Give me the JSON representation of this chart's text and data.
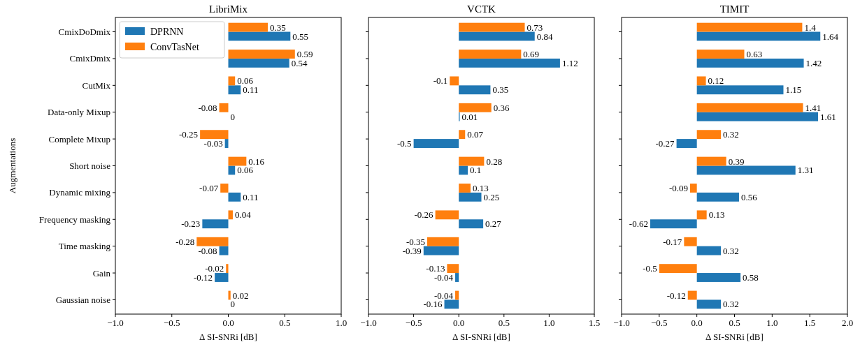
{
  "chart_data": [
    {
      "type": "bar",
      "orientation": "horizontal",
      "title": "LibriMix",
      "xlabel": "Δ SI-SNRi [dB]",
      "ylabel": "Augmentations",
      "categories": [
        "CmixDoDmix",
        "CmixDmix",
        "CutMix",
        "Data-only Mixup",
        "Complete Mixup",
        "Short noise",
        "Dynamic mixing",
        "Frequency masking",
        "Time masking",
        "Gain",
        "Gaussian noise"
      ],
      "xlim": [
        -1,
        1
      ],
      "xticks": [
        {
          "value": -1,
          "label": "−1.0"
        },
        {
          "value": -0.5,
          "label": "−0.5"
        },
        {
          "value": 0,
          "label": "0.0"
        },
        {
          "value": 0.5,
          "label": "0.5"
        },
        {
          "value": 1,
          "label": "1.0"
        }
      ],
      "legend": "top left",
      "data_labels": true,
      "series": [
        {
          "name": "DPRNN",
          "color": "#1f77b4",
          "values": [
            0.55,
            0.54,
            0.11,
            0,
            -0.03,
            0.06,
            0.11,
            -0.23,
            -0.08,
            -0.12,
            0
          ]
        },
        {
          "name": "ConvTasNet",
          "color": "#ff7f0e",
          "values": [
            0.35,
            0.59,
            0.06,
            -0.08,
            -0.25,
            0.16,
            -0.07,
            0.04,
            -0.28,
            -0.02,
            0.02
          ]
        }
      ]
    },
    {
      "type": "bar",
      "orientation": "horizontal",
      "title": "VCTK",
      "xlabel": "Δ SI-SNRi [dB]",
      "categories": [
        null,
        null,
        null,
        null,
        null,
        null,
        null,
        null,
        null,
        null,
        null
      ],
      "tick_labels": "x",
      "xlim": [
        -1,
        1.5
      ],
      "xticks": [
        {
          "value": -1,
          "label": "−1.0"
        },
        {
          "value": -0.5,
          "label": "−0.5"
        },
        {
          "value": 0,
          "label": "0.0"
        },
        {
          "value": 0.5,
          "label": "0.5"
        },
        {
          "value": 1,
          "label": "1.0"
        },
        {
          "value": 1.5,
          "label": "1.5"
        }
      ],
      "data_labels": true,
      "series": [
        {
          "color": "#1f77b4",
          "values": [
            0.84,
            1.12,
            0.35,
            0.01,
            -0.5,
            0.1,
            0.25,
            0.27,
            -0.39,
            -0.04,
            -0.16
          ]
        },
        {
          "color": "#ff7f0e",
          "values": [
            0.73,
            0.69,
            -0.1,
            0.36,
            0.07,
            0.28,
            0.13,
            -0.26,
            -0.35,
            -0.13,
            -0.04
          ]
        }
      ]
    },
    {
      "type": "bar",
      "orientation": "horizontal",
      "title": "TIMIT",
      "xlabel": "Δ SI-SNRi [dB]",
      "categories": [
        null,
        null,
        null,
        null,
        null,
        null,
        null,
        null,
        null,
        null,
        null
      ],
      "tick_labels": "x",
      "xlim": [
        -1,
        2
      ],
      "xticks": [
        {
          "value": -1,
          "label": "−1.0"
        },
        {
          "value": -0.5,
          "label": "−0.5"
        },
        {
          "value": 0,
          "label": "0.0"
        },
        {
          "value": 0.5,
          "label": "0.5"
        },
        {
          "value": 1,
          "label": "1.0"
        },
        {
          "value": 1.5,
          "label": "1.5"
        },
        {
          "value": 2,
          "label": "2.0"
        }
      ],
      "data_labels": true,
      "series": [
        {
          "color": "#1f77b4",
          "values": [
            1.64,
            1.42,
            1.15,
            1.61,
            -0.27,
            1.31,
            0.56,
            -0.62,
            0.32,
            0.58,
            0.32
          ]
        },
        {
          "color": "#ff7f0e",
          "values": [
            1.4,
            0.63,
            0.12,
            1.41,
            0.32,
            0.39,
            -0.09,
            0.13,
            -0.17,
            -0.5,
            -0.12
          ]
        }
      ]
    }
  ]
}
